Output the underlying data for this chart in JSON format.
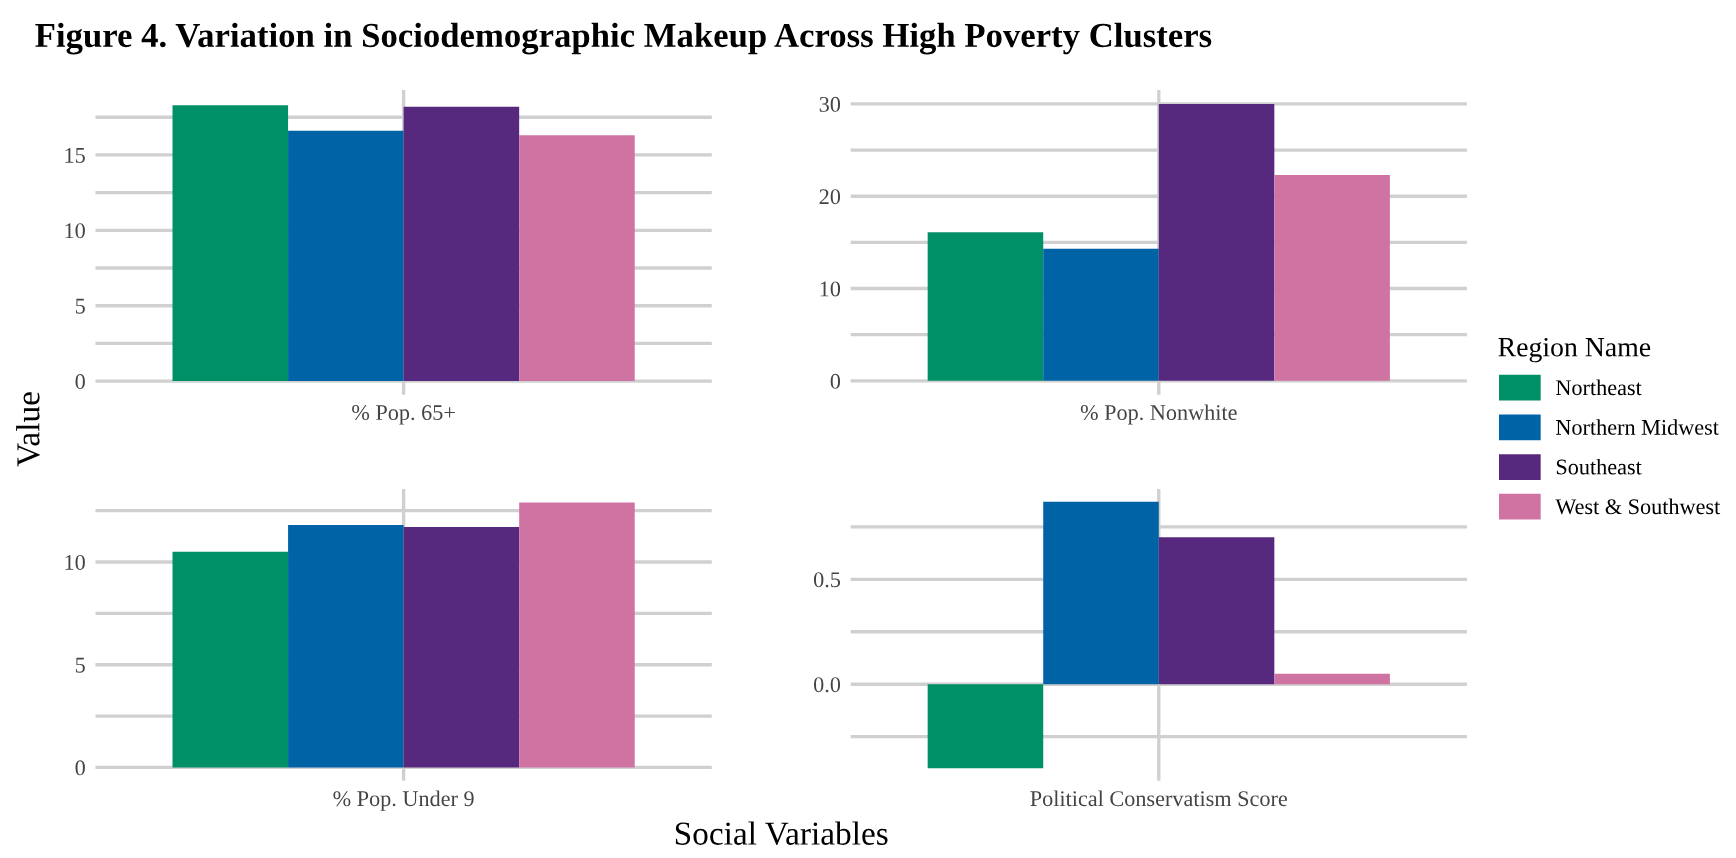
{
  "chart_data": [
    {
      "type": "bar",
      "title": "Figure 4. Variation in Sociodemographic Makeup Across High Poverty Clusters",
      "ylabel": "Value",
      "categories": [
        "% Pop. 65+"
      ],
      "series": [
        {
          "color": "#009067",
          "values": [
            18.3
          ]
        },
        {
          "color": "#0063a6",
          "values": [
            16.6
          ]
        },
        {
          "color": "#56297f",
          "values": [
            18.2
          ]
        },
        {
          "color": "#cf73a3",
          "values": [
            16.3
          ]
        }
      ],
      "ylim": [
        -0.9,
        19.3
      ],
      "yticks": [
        0,
        {
          "value": 2.5,
          "label": null
        },
        5,
        {
          "value": 7.5,
          "label": null
        },
        10,
        {
          "value": 12.5,
          "label": null
        },
        15,
        {
          "value": 17.5,
          "label": null
        }
      ],
      "grid": true
    },
    {
      "type": "bar",
      "categories": [
        "% Pop. Nonwhite"
      ],
      "legend": "right",
      "legend_title": "Region Name",
      "series": [
        {
          "name": "Northeast",
          "color": "#009067",
          "values": [
            16.1
          ]
        },
        {
          "name": "Northern Midwest",
          "color": "#0063a6",
          "values": [
            14.3
          ]
        },
        {
          "name": "Southeast",
          "color": "#56297f",
          "values": [
            30.0
          ]
        },
        {
          "name": "West & Southwest",
          "color": "#cf73a3",
          "values": [
            22.3
          ]
        }
      ],
      "ylim": [
        -1.5,
        31.5
      ],
      "yticks": [
        0,
        {
          "value": 5,
          "label": null
        },
        10,
        {
          "value": 15,
          "label": null
        },
        20,
        {
          "value": 25,
          "label": null
        },
        30
      ],
      "grid": true
    },
    {
      "type": "bar",
      "categories": [
        "% Pop. Under 9"
      ],
      "xlabel": "Social Variables",
      "series": [
        {
          "color": "#009067",
          "values": [
            10.5
          ]
        },
        {
          "color": "#0063a6",
          "values": [
            11.8
          ]
        },
        {
          "color": "#56297f",
          "values": [
            11.7
          ]
        },
        {
          "color": "#cf73a3",
          "values": [
            12.9
          ]
        }
      ],
      "ylim": [
        -0.65,
        13.55
      ],
      "yticks": [
        0,
        {
          "value": 2.5,
          "label": null
        },
        5,
        {
          "value": 7.5,
          "label": null
        },
        10,
        {
          "value": 12.5,
          "label": null
        }
      ],
      "grid": true
    },
    {
      "type": "bar",
      "categories": [
        "Political Conservatism Score"
      ],
      "series": [
        {
          "color": "#009067",
          "values": [
            -0.4
          ]
        },
        {
          "color": "#0063a6",
          "values": [
            0.87
          ]
        },
        {
          "color": "#56297f",
          "values": [
            0.7
          ]
        },
        {
          "color": "#cf73a3",
          "values": [
            0.05
          ]
        }
      ],
      "ylim": [
        -0.46,
        0.93
      ],
      "yticks": [
        {
          "value": -0.25,
          "label": null
        },
        {
          "value": 0,
          "label": "0.0"
        },
        {
          "value": 0.25,
          "label": null
        },
        0.5,
        {
          "value": 0.75,
          "label": null
        }
      ],
      "grid": true
    }
  ]
}
